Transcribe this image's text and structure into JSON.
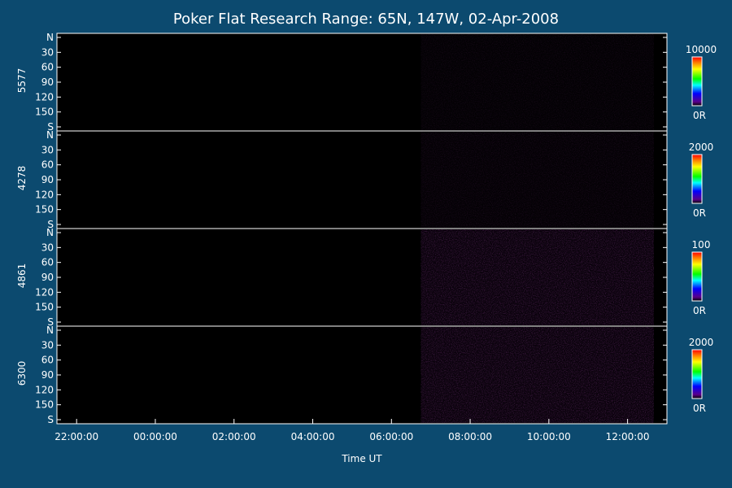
{
  "chart_data": {
    "type": "heatmap",
    "title": "Poker Flat Research Range: 65N, 147W, 02-Apr-2008",
    "xlabel": "Time UT",
    "x_tick_labels": [
      "22:00:00",
      "00:00:00",
      "02:00:00",
      "04:00:00",
      "06:00:00",
      "08:00:00",
      "10:00:00",
      "12:00:00"
    ],
    "x_range": [
      "21:30:00",
      "13:00:00"
    ],
    "y_tick_labels": [
      "N",
      "30",
      "60",
      "90",
      "120",
      "150",
      "S"
    ],
    "y_range": [
      0,
      180
    ],
    "data_start_time": "06:45:00",
    "data_end_time": "12:40:00",
    "panels": [
      {
        "wavelength": "5577",
        "colorbar_max": "10000",
        "colorbar_min": "0R",
        "intensity": 0.1
      },
      {
        "wavelength": "4278",
        "colorbar_max": "2000",
        "colorbar_min": "0R",
        "intensity": 0.12
      },
      {
        "wavelength": "4861",
        "colorbar_max": "100",
        "colorbar_min": "0R",
        "intensity": 0.3
      },
      {
        "wavelength": "6300",
        "colorbar_max": "2000",
        "colorbar_min": "0R",
        "intensity": 0.3
      }
    ]
  }
}
